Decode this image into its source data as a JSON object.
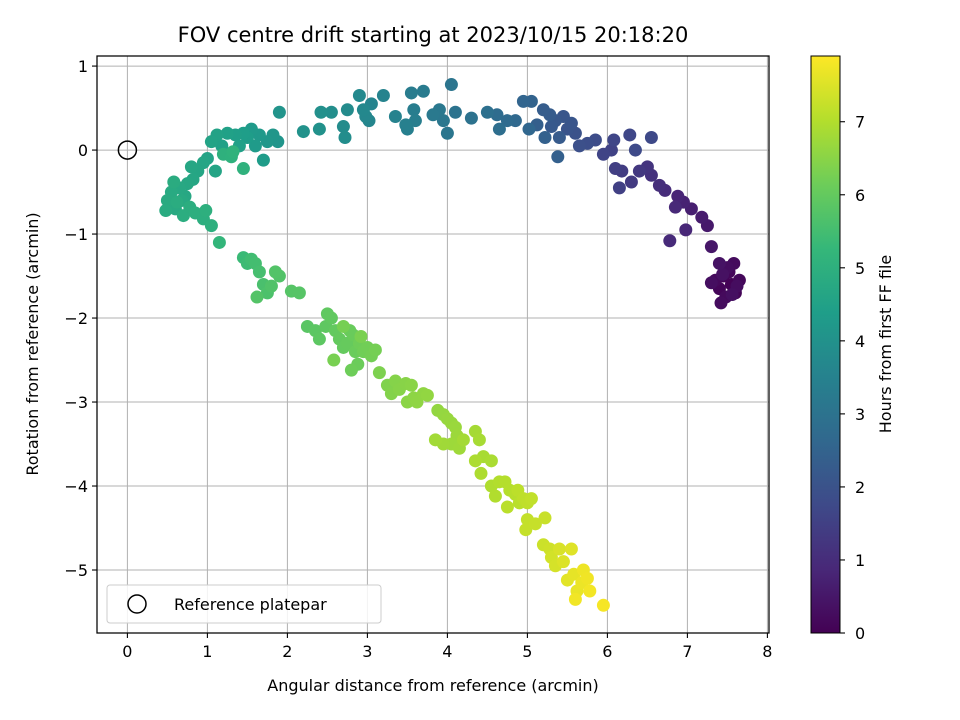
{
  "chart_data": {
    "type": "scatter",
    "title": "FOV centre drift starting at 2023/10/15 20:18:20",
    "xlabel": "Angular distance from reference (arcmin)",
    "ylabel": "Rotation from reference (arcmin)",
    "xlim": [
      -0.38,
      8.02
    ],
    "ylim": [
      -5.75,
      1.12
    ],
    "xticks": [
      0,
      1,
      2,
      3,
      4,
      5,
      6,
      7,
      8
    ],
    "yticks": [
      -5,
      -4,
      -3,
      -2,
      -1,
      0,
      1
    ],
    "grid": true,
    "colormap": "viridis",
    "colorbar": {
      "label": "Hours from first FF file",
      "range": [
        0,
        7.9
      ],
      "ticks": [
        0,
        1,
        2,
        3,
        4,
        5,
        6,
        7
      ]
    },
    "reference": {
      "name": "Reference platepar",
      "x": 0,
      "y": 0,
      "marker": "open-circle"
    },
    "legend": {
      "placement": "lower-left",
      "entries": [
        "Reference platepar"
      ]
    },
    "series": [
      {
        "marker": "filled-circle",
        "points": [
          [
            7.55,
            -1.6,
            0.02
          ],
          [
            7.45,
            -1.5,
            0.05
          ],
          [
            7.6,
            -1.7,
            0.08
          ],
          [
            7.4,
            -1.65,
            0.1
          ],
          [
            7.52,
            -1.45,
            0.12
          ],
          [
            7.65,
            -1.55,
            0.15
          ],
          [
            7.35,
            -1.55,
            0.18
          ],
          [
            7.48,
            -1.75,
            0.2
          ],
          [
            7.58,
            -1.35,
            0.22
          ],
          [
            7.42,
            -1.82,
            0.24
          ],
          [
            7.5,
            -1.4,
            0.26
          ],
          [
            7.62,
            -1.62,
            0.28
          ],
          [
            7.3,
            -1.58,
            0.3
          ],
          [
            7.56,
            -1.72,
            0.32
          ],
          [
            7.44,
            -1.48,
            0.35
          ],
          [
            7.4,
            -1.35,
            0.4
          ],
          [
            7.3,
            -1.15,
            0.48
          ],
          [
            7.25,
            -0.9,
            0.55
          ],
          [
            7.18,
            -0.8,
            0.6
          ],
          [
            7.05,
            -0.7,
            0.68
          ],
          [
            6.95,
            -0.62,
            0.75
          ],
          [
            6.88,
            -0.55,
            0.82
          ],
          [
            6.98,
            -0.95,
            0.86
          ],
          [
            6.85,
            -0.68,
            0.9
          ],
          [
            6.78,
            -1.08,
            0.94
          ],
          [
            6.72,
            -0.48,
            0.98
          ],
          [
            6.65,
            -0.42,
            1.05
          ],
          [
            6.55,
            -0.3,
            1.12
          ],
          [
            6.5,
            -0.2,
            1.2
          ],
          [
            6.4,
            -0.25,
            1.28
          ],
          [
            6.3,
            -0.38,
            1.34
          ],
          [
            6.18,
            -0.25,
            1.4
          ],
          [
            6.1,
            -0.22,
            1.46
          ],
          [
            6.15,
            -0.45,
            1.5
          ],
          [
            6.05,
            0.0,
            1.55
          ],
          [
            5.95,
            -0.05,
            1.6
          ],
          [
            6.08,
            0.12,
            1.64
          ],
          [
            6.28,
            0.18,
            1.68
          ],
          [
            6.55,
            0.15,
            1.72
          ],
          [
            6.35,
            0.0,
            1.76
          ],
          [
            5.85,
            0.12,
            1.8
          ],
          [
            5.75,
            0.08,
            1.86
          ],
          [
            5.65,
            0.05,
            1.92
          ],
          [
            5.6,
            0.2,
            1.98
          ],
          [
            5.5,
            0.25,
            2.04
          ],
          [
            5.55,
            0.32,
            2.08
          ],
          [
            5.45,
            0.4,
            2.12
          ],
          [
            5.35,
            0.35,
            2.16
          ],
          [
            5.3,
            0.28,
            2.2
          ],
          [
            5.4,
            0.15,
            2.24
          ],
          [
            5.28,
            0.42,
            2.28
          ],
          [
            5.2,
            0.48,
            2.32
          ],
          [
            5.12,
            0.3,
            2.36
          ],
          [
            5.38,
            -0.08,
            2.4
          ],
          [
            5.22,
            0.15,
            2.44
          ],
          [
            5.05,
            0.58,
            2.5
          ],
          [
            4.95,
            0.58,
            2.56
          ],
          [
            5.02,
            0.25,
            2.6
          ],
          [
            4.85,
            0.35,
            2.66
          ],
          [
            4.75,
            0.35,
            2.72
          ],
          [
            4.62,
            0.42,
            2.78
          ],
          [
            4.65,
            0.25,
            2.84
          ],
          [
            4.5,
            0.45,
            2.9
          ],
          [
            4.3,
            0.38,
            2.96
          ],
          [
            4.1,
            0.45,
            3.02
          ],
          [
            4.05,
            0.78,
            3.06
          ],
          [
            4.0,
            0.2,
            3.1
          ],
          [
            3.95,
            0.35,
            3.14
          ],
          [
            3.9,
            0.48,
            3.18
          ],
          [
            3.82,
            0.42,
            3.22
          ],
          [
            3.7,
            0.7,
            3.26
          ],
          [
            3.55,
            0.68,
            3.3
          ],
          [
            3.58,
            0.48,
            3.34
          ],
          [
            3.6,
            0.35,
            3.38
          ],
          [
            3.5,
            0.25,
            3.42
          ],
          [
            3.48,
            0.3,
            3.46
          ],
          [
            3.35,
            0.4,
            3.5
          ],
          [
            3.2,
            0.65,
            3.54
          ],
          [
            3.05,
            0.55,
            3.58
          ],
          [
            3.02,
            0.35,
            3.62
          ],
          [
            2.98,
            0.4,
            3.66
          ],
          [
            2.95,
            0.48,
            3.7
          ],
          [
            2.9,
            0.65,
            3.74
          ],
          [
            2.75,
            0.48,
            3.78
          ],
          [
            2.7,
            0.28,
            3.82
          ],
          [
            2.72,
            0.15,
            3.86
          ],
          [
            2.55,
            0.45,
            3.9
          ],
          [
            2.42,
            0.45,
            3.94
          ],
          [
            2.4,
            0.25,
            3.98
          ],
          [
            2.2,
            0.22,
            4.02
          ],
          [
            1.9,
            0.45,
            4.06
          ],
          [
            1.88,
            0.1,
            4.1
          ],
          [
            1.82,
            0.18,
            4.14
          ],
          [
            1.75,
            0.1,
            4.18
          ],
          [
            1.65,
            0.18,
            4.22
          ],
          [
            1.55,
            0.25,
            4.26
          ],
          [
            1.6,
            0.05,
            4.3
          ],
          [
            1.7,
            -0.12,
            4.33
          ],
          [
            1.5,
            0.15,
            4.36
          ],
          [
            1.45,
            0.2,
            4.39
          ],
          [
            1.35,
            0.18,
            4.42
          ],
          [
            1.4,
            0.05,
            4.45
          ],
          [
            1.25,
            0.2,
            4.48
          ],
          [
            1.18,
            0.05,
            4.51
          ],
          [
            1.12,
            0.18,
            4.54
          ],
          [
            1.05,
            0.1,
            4.56
          ],
          [
            1.0,
            -0.1,
            4.58
          ],
          [
            1.1,
            -0.25,
            4.6
          ],
          [
            0.95,
            -0.15,
            4.62
          ],
          [
            0.88,
            -0.25,
            4.64
          ],
          [
            0.8,
            -0.2,
            4.66
          ],
          [
            0.82,
            -0.35,
            4.68
          ],
          [
            0.75,
            -0.4,
            4.7
          ],
          [
            0.72,
            -0.55,
            4.72
          ],
          [
            0.65,
            -0.45,
            4.74
          ],
          [
            0.68,
            -0.6,
            4.76
          ],
          [
            0.6,
            -0.7,
            4.78
          ],
          [
            0.55,
            -0.5,
            4.8
          ],
          [
            0.5,
            -0.6,
            4.82
          ],
          [
            0.48,
            -0.72,
            4.84
          ],
          [
            0.58,
            -0.38,
            4.86
          ],
          [
            0.62,
            -0.62,
            4.88
          ],
          [
            0.7,
            -0.78,
            4.9
          ],
          [
            0.78,
            -0.68,
            4.92
          ],
          [
            0.85,
            -0.75,
            4.94
          ],
          [
            0.95,
            -0.82,
            4.96
          ],
          [
            0.98,
            -0.72,
            4.98
          ],
          [
            1.05,
            -0.9,
            5.0
          ],
          [
            1.2,
            -0.05,
            5.02
          ],
          [
            1.3,
            -0.08,
            5.04
          ],
          [
            1.45,
            -0.22,
            5.06
          ],
          [
            1.32,
            -0.02,
            5.08
          ],
          [
            1.15,
            -1.1,
            5.2
          ],
          [
            1.45,
            -1.28,
            5.35
          ],
          [
            1.5,
            -1.35,
            5.4
          ],
          [
            1.55,
            -1.3,
            5.45
          ],
          [
            1.6,
            -1.35,
            5.5
          ],
          [
            1.65,
            -1.45,
            5.55
          ],
          [
            1.7,
            -1.6,
            5.6
          ],
          [
            1.75,
            -1.7,
            5.65
          ],
          [
            1.8,
            -1.62,
            5.7
          ],
          [
            1.9,
            -1.5,
            5.72
          ],
          [
            1.85,
            -1.45,
            5.74
          ],
          [
            1.62,
            -1.75,
            5.76
          ],
          [
            2.05,
            -1.68,
            5.78
          ],
          [
            2.15,
            -1.7,
            5.8
          ],
          [
            2.25,
            -2.1,
            5.84
          ],
          [
            2.35,
            -2.15,
            5.88
          ],
          [
            2.4,
            -2.25,
            5.9
          ],
          [
            2.48,
            -2.1,
            5.92
          ],
          [
            2.5,
            -1.95,
            5.94
          ],
          [
            2.55,
            -2.0,
            5.96
          ],
          [
            2.6,
            -2.15,
            5.98
          ],
          [
            2.65,
            -2.25,
            6.0
          ],
          [
            2.7,
            -2.35,
            6.02
          ],
          [
            2.75,
            -2.3,
            6.04
          ],
          [
            2.78,
            -2.15,
            6.06
          ],
          [
            2.82,
            -2.2,
            6.08
          ],
          [
            2.85,
            -2.4,
            6.1
          ],
          [
            2.88,
            -2.55,
            6.12
          ],
          [
            2.8,
            -2.62,
            6.14
          ],
          [
            2.9,
            -2.3,
            6.16
          ],
          [
            2.95,
            -2.4,
            6.18
          ],
          [
            3.0,
            -2.35,
            6.2
          ],
          [
            3.05,
            -2.45,
            6.22
          ],
          [
            3.1,
            -2.38,
            6.24
          ],
          [
            2.7,
            -2.1,
            6.26
          ],
          [
            2.58,
            -2.5,
            6.28
          ],
          [
            2.92,
            -2.22,
            6.3
          ],
          [
            3.15,
            -2.65,
            6.34
          ],
          [
            3.25,
            -2.8,
            6.38
          ],
          [
            3.3,
            -2.9,
            6.42
          ],
          [
            3.35,
            -2.75,
            6.44
          ],
          [
            3.4,
            -2.85,
            6.46
          ],
          [
            3.48,
            -2.78,
            6.48
          ],
          [
            3.55,
            -2.8,
            6.5
          ],
          [
            3.5,
            -3.0,
            6.52
          ],
          [
            3.58,
            -2.95,
            6.54
          ],
          [
            3.62,
            -3.0,
            6.56
          ],
          [
            3.7,
            -2.9,
            6.58
          ],
          [
            3.75,
            -2.92,
            6.6
          ],
          [
            3.88,
            -3.1,
            6.62
          ],
          [
            3.95,
            -3.15,
            6.64
          ],
          [
            4.0,
            -3.2,
            6.66
          ],
          [
            4.05,
            -3.25,
            6.68
          ],
          [
            4.1,
            -3.3,
            6.7
          ],
          [
            4.12,
            -3.4,
            6.72
          ],
          [
            4.05,
            -3.5,
            6.74
          ],
          [
            4.15,
            -3.55,
            6.76
          ],
          [
            3.95,
            -3.5,
            6.78
          ],
          [
            3.85,
            -3.45,
            6.8
          ],
          [
            4.2,
            -3.45,
            6.82
          ],
          [
            4.35,
            -3.35,
            6.84
          ],
          [
            4.4,
            -3.45,
            6.86
          ],
          [
            4.45,
            -3.65,
            6.88
          ],
          [
            4.55,
            -3.7,
            6.9
          ],
          [
            4.35,
            -3.7,
            6.92
          ],
          [
            4.42,
            -3.85,
            6.94
          ],
          [
            4.55,
            -4.0,
            6.96
          ],
          [
            4.6,
            -4.12,
            6.98
          ],
          [
            4.65,
            -3.95,
            7.0
          ],
          [
            4.72,
            -3.95,
            7.02
          ],
          [
            4.78,
            -4.05,
            7.04
          ],
          [
            4.85,
            -4.1,
            7.06
          ],
          [
            4.9,
            -4.2,
            7.08
          ],
          [
            4.75,
            -4.25,
            7.1
          ],
          [
            4.88,
            -4.05,
            7.12
          ],
          [
            4.95,
            -4.15,
            7.14
          ],
          [
            5.0,
            -4.2,
            7.16
          ],
          [
            5.05,
            -4.15,
            7.18
          ],
          [
            5.0,
            -4.4,
            7.2
          ],
          [
            4.98,
            -4.52,
            7.22
          ],
          [
            5.1,
            -4.45,
            7.24
          ],
          [
            5.22,
            -4.38,
            7.26
          ],
          [
            5.2,
            -4.7,
            7.3
          ],
          [
            5.28,
            -4.75,
            7.34
          ],
          [
            5.3,
            -4.85,
            7.38
          ],
          [
            5.35,
            -4.95,
            7.42
          ],
          [
            5.4,
            -4.75,
            7.46
          ],
          [
            5.45,
            -4.9,
            7.5
          ],
          [
            5.55,
            -4.75,
            7.54
          ],
          [
            5.5,
            -5.12,
            7.58
          ],
          [
            5.58,
            -5.05,
            7.62
          ],
          [
            5.62,
            -5.25,
            7.66
          ],
          [
            5.68,
            -5.15,
            7.7
          ],
          [
            5.7,
            -5.0,
            7.72
          ],
          [
            5.75,
            -5.1,
            7.74
          ],
          [
            5.6,
            -5.35,
            7.76
          ],
          [
            5.78,
            -5.25,
            7.78
          ],
          [
            5.95,
            -5.42,
            7.82
          ]
        ]
      }
    ]
  }
}
